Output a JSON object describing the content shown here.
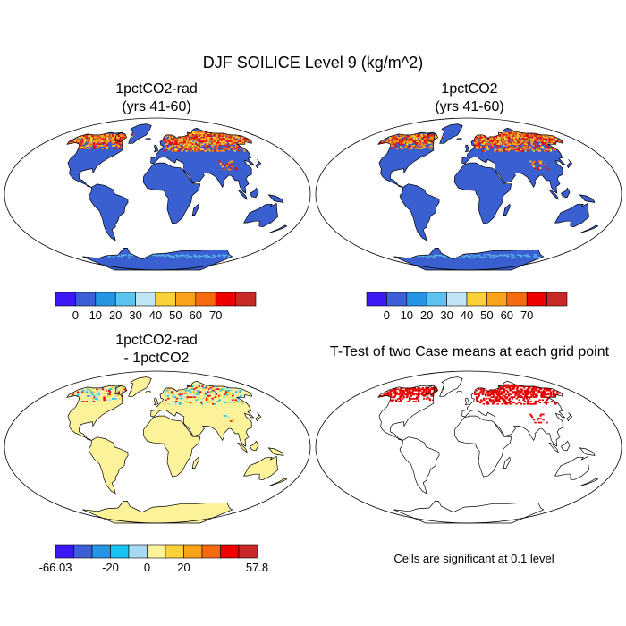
{
  "figure": {
    "title": "DJF SOILICE Level 9 (kg/m^2)",
    "footnote": "Cells are significant at 0.1 level"
  },
  "colors": {
    "land_base": "#3a5fd0",
    "diff_base": "#fbf29a",
    "significant": "#e60000",
    "coast": "#000000",
    "ice_edge": "#5bbbe8"
  },
  "panels": [
    {
      "id": "p1",
      "title_line1": "1pctCO2-rad",
      "title_line2": "(yrs 41-60)",
      "kind": "abs"
    },
    {
      "id": "p2",
      "title_line1": "1pctCO2",
      "title_line2": "(yrs 41-60)",
      "kind": "abs"
    },
    {
      "id": "p3",
      "title_line1": "1pctCO2-rad",
      "title_line2": "- 1pctCO2",
      "kind": "diff"
    },
    {
      "id": "p4",
      "title_line1": "T-Test of two Case means at each grid point",
      "title_line2": "",
      "kind": "ttest"
    }
  ],
  "colorbars": {
    "absolute": {
      "colors": [
        "#3b19f5",
        "#3c5fd6",
        "#2795e6",
        "#5cc2ee",
        "#bfe5f7",
        "#fbd13a",
        "#f9a21a",
        "#f56b10",
        "#ee0000",
        "#c82828"
      ],
      "tick_labels": [
        "0",
        "10",
        "20",
        "30",
        "40",
        "50",
        "60",
        "70"
      ]
    },
    "difference": {
      "colors": [
        "#3b19f5",
        "#3c5fd6",
        "#2795e6",
        "#16c3f2",
        "#a9d8f2",
        "#fbf29a",
        "#fbd13a",
        "#f9a21a",
        "#f56b10",
        "#ee0000",
        "#c82828"
      ],
      "tick_labels": [
        "-66.03",
        "-20",
        "0",
        "20",
        "57.8"
      ]
    }
  }
}
